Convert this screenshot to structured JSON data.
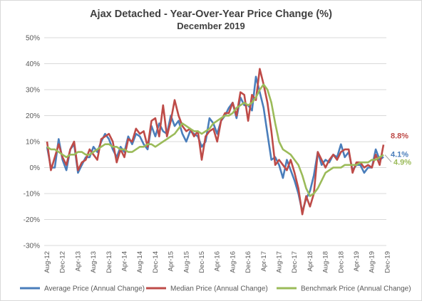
{
  "header": {
    "title": "Ajax Detached - Year-Over-Year Price Change (%)",
    "subtitle": "December 2019"
  },
  "chart_data": {
    "type": "line",
    "title": "Ajax Detached - Year-Over-Year Price Change (%)",
    "subtitle": "December 2019",
    "xlabel": "",
    "ylabel": "",
    "ylim": [
      -30,
      50
    ],
    "y_ticks": [
      "-30%",
      "-20%",
      "-10%",
      "0%",
      "10%",
      "20%",
      "30%",
      "40%",
      "50%"
    ],
    "x_tick_labels": [
      "Aug-12",
      "Dec-12",
      "Apr-13",
      "Aug-13",
      "Dec-13",
      "Apr-14",
      "Aug-14",
      "Dec-14",
      "Apr-15",
      "Aug-15",
      "Dec-15",
      "Apr-16",
      "Aug-16",
      "Dec-16",
      "Apr-17",
      "Aug-17",
      "Dec-17",
      "Apr-18",
      "Aug-18",
      "Dec-18",
      "Apr-19",
      "Aug-19",
      "Dec-19"
    ],
    "grid": "horizontal",
    "legend_position": "bottom",
    "series": [
      {
        "name": "Average Price (Annual Change)",
        "color": "#4a7ebb",
        "end_label": "4.1%",
        "values": [
          8,
          0,
          0,
          11,
          3,
          -1,
          7,
          9,
          -2,
          1,
          4,
          4,
          8,
          6,
          10,
          13,
          11,
          7,
          4,
          8,
          6,
          12,
          9,
          13,
          12,
          9,
          7,
          16,
          12,
          17,
          14,
          13,
          20,
          16,
          18,
          13,
          10,
          14,
          13,
          12,
          8,
          10,
          19,
          17,
          13,
          18,
          20,
          23,
          25,
          19,
          27,
          24,
          24,
          22,
          35,
          29,
          23,
          13,
          3,
          4,
          1,
          -4,
          3,
          -1,
          -5,
          -10,
          -17,
          -12,
          -9,
          -3,
          6,
          1,
          3,
          2,
          5,
          4,
          9,
          4,
          6,
          -1,
          1,
          1,
          -2,
          0,
          0,
          7,
          3,
          4.1
        ]
      },
      {
        "name": "Median Price (Annual Change)",
        "color": "#be4b48",
        "end_label": "8.8%",
        "values": [
          10,
          -1,
          4,
          9,
          4,
          1,
          7,
          10,
          -1,
          2,
          3,
          7,
          5,
          3,
          11,
          12,
          13,
          10,
          2,
          7,
          4,
          11,
          10,
          15,
          13,
          14,
          8,
          18,
          19,
          12,
          24,
          12,
          18,
          26,
          20,
          16,
          14,
          15,
          12,
          14,
          3,
          12,
          14,
          15,
          10,
          18,
          21,
          21,
          25,
          20,
          29,
          28,
          18,
          28,
          26,
          38,
          32,
          25,
          14,
          1,
          3,
          1,
          -1,
          3,
          -2,
          -8,
          -18,
          -11,
          -15,
          -10,
          6,
          3,
          0,
          3,
          5,
          3,
          6,
          7,
          7,
          -2,
          2,
          2,
          0,
          1,
          0,
          5,
          1,
          8.8
        ]
      },
      {
        "name": "Benchmark Price (Annual Change)",
        "color": "#9bbb59",
        "end_label": "4.9%",
        "values": [
          8,
          7,
          7,
          6,
          5,
          4,
          5,
          5,
          6,
          6,
          5,
          5,
          6,
          7,
          8,
          9,
          9,
          8,
          8,
          7,
          7,
          6,
          6,
          7,
          8,
          8,
          9,
          9,
          8,
          9,
          10,
          11,
          12,
          13,
          15,
          17,
          16,
          15,
          14,
          14,
          13,
          14,
          15,
          17,
          18,
          19,
          20,
          20,
          21,
          23,
          24,
          25,
          24,
          25,
          27,
          30,
          32,
          30,
          25,
          17,
          10,
          7,
          6,
          5,
          3,
          1,
          -3,
          -8,
          -11,
          -10,
          -8,
          -5,
          -2,
          -1,
          0,
          0,
          0,
          1,
          1,
          1,
          1,
          2,
          2,
          2,
          3,
          3,
          4,
          4.9
        ]
      }
    ]
  }
}
